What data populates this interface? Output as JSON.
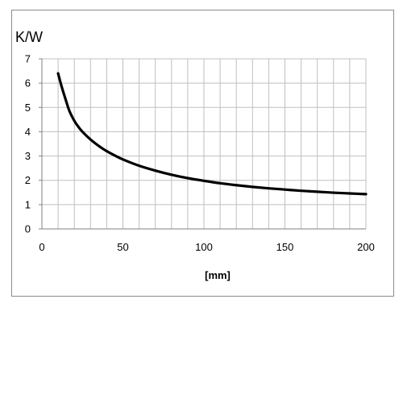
{
  "chart_data": {
    "type": "line",
    "title": "",
    "ylabel": "K/W",
    "xlabel": "[mm]",
    "xlim": [
      0,
      200
    ],
    "ylim": [
      0,
      7
    ],
    "x_ticks": [
      0,
      50,
      100,
      150,
      200
    ],
    "y_ticks": [
      0,
      1,
      2,
      3,
      4,
      5,
      6,
      7
    ],
    "x_minor_step": 10,
    "grid": true,
    "legend": "none",
    "colors": {
      "line": "#000000",
      "grid": "#bfbfbf",
      "axis": "#808080",
      "frame": "#8c8c8c"
    },
    "series": [
      {
        "x": [
          10,
          12,
          15,
          17,
          20,
          22,
          25,
          30,
          35,
          40,
          45,
          50,
          60,
          70,
          80,
          90,
          100,
          110,
          120,
          130,
          140,
          150,
          160,
          170,
          180,
          190,
          200
        ],
        "values": [
          6.4,
          5.9,
          5.25,
          4.85,
          4.45,
          4.25,
          4.0,
          3.68,
          3.42,
          3.2,
          3.02,
          2.86,
          2.6,
          2.4,
          2.23,
          2.09,
          1.98,
          1.88,
          1.8,
          1.73,
          1.67,
          1.62,
          1.57,
          1.53,
          1.49,
          1.46,
          1.43
        ]
      }
    ]
  }
}
